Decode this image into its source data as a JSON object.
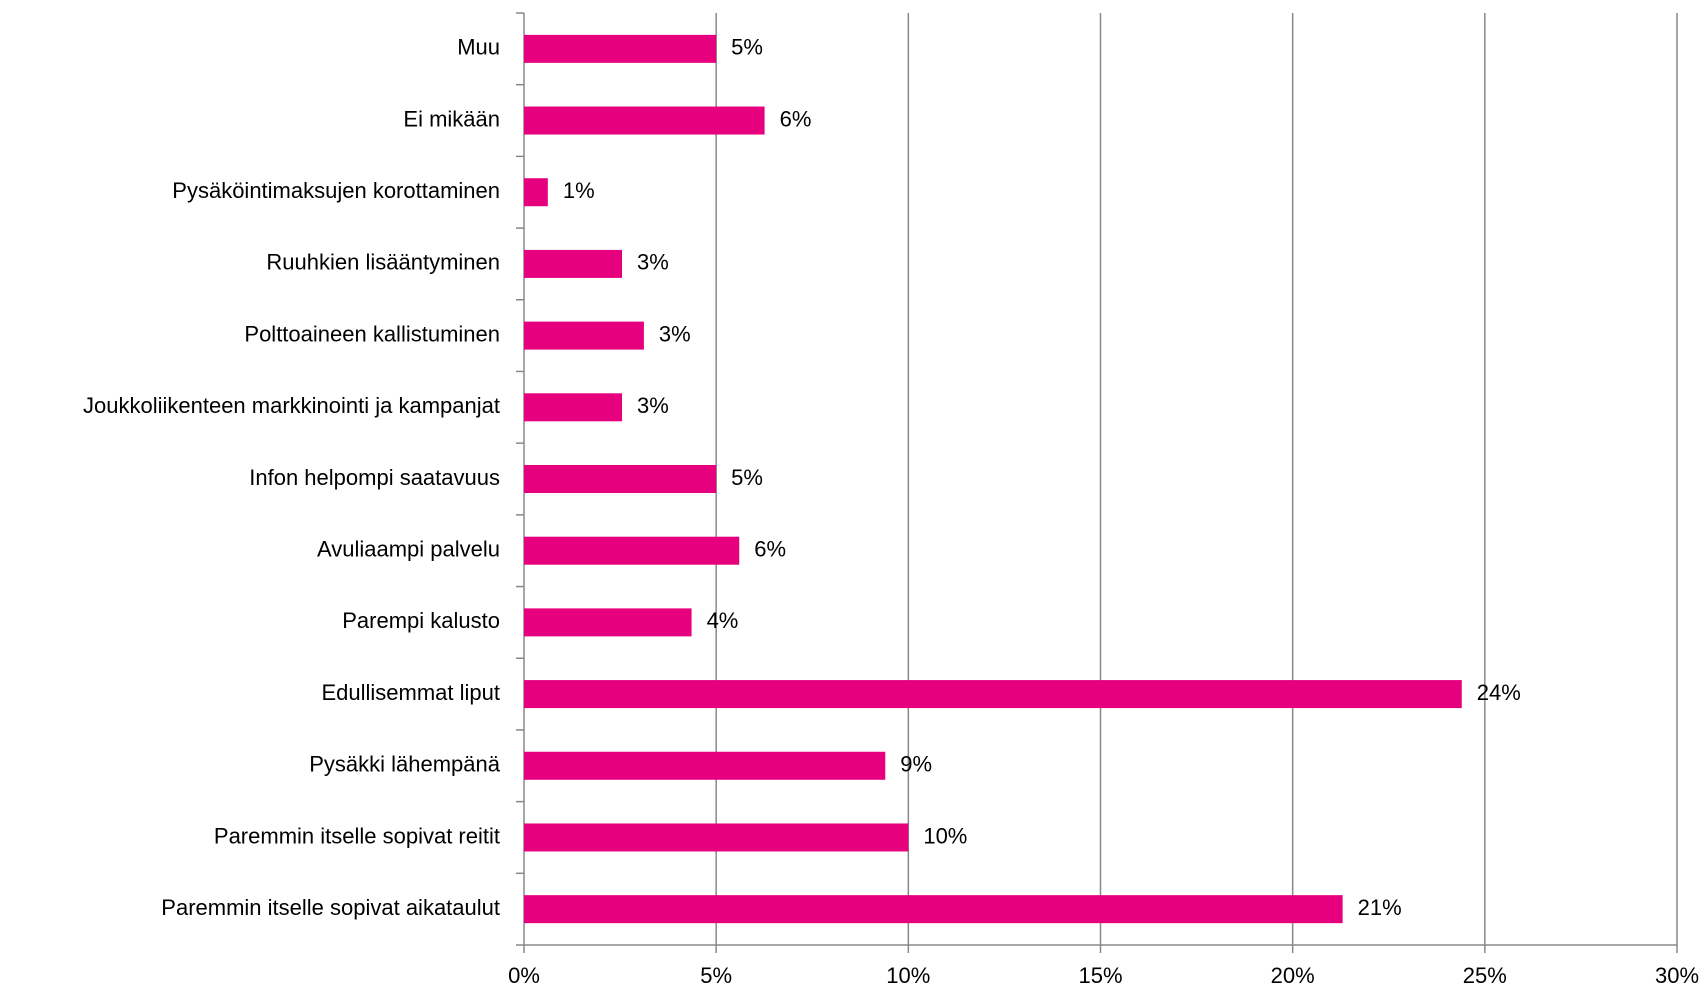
{
  "chart_data": {
    "type": "bar",
    "orientation": "horizontal",
    "categories": [
      "Muu",
      "Ei mikään",
      "Pysäköintimaksujen korottaminen",
      "Ruuhkien lisääntyminen",
      "Polttoaineen kallistuminen",
      "Joukkoliikenteen markkinointi ja kampanjat",
      "Infon helpompi saatavuus",
      "Avuliaampi palvelu",
      "Parempi kalusto",
      "Edullisemmat liput",
      "Pysäkki lähempänä",
      "Paremmin itselle sopivat reitit",
      "Paremmin itselle sopivat aikataulut"
    ],
    "values": [
      5.0,
      6.26,
      0.62,
      2.55,
      3.12,
      2.55,
      5.0,
      5.6,
      4.36,
      24.4,
      9.4,
      10.0,
      21.3
    ],
    "value_labels": [
      "5%",
      "6%",
      "1%",
      "3%",
      "3%",
      "3%",
      "5%",
      "6%",
      "4%",
      "24%",
      "9%",
      "10%",
      "21%"
    ],
    "color": "#e6007e",
    "xlim": [
      0,
      30
    ],
    "xticks": [
      {
        "value": 0,
        "label": "0%"
      },
      {
        "value": 5,
        "label": "5%"
      },
      {
        "value": 10,
        "label": "10%"
      },
      {
        "value": 15,
        "label": "15%"
      },
      {
        "value": 20,
        "label": "20%"
      },
      {
        "value": 25,
        "label": "25%"
      },
      {
        "value": 30,
        "label": "30%"
      }
    ],
    "grid": true
  }
}
